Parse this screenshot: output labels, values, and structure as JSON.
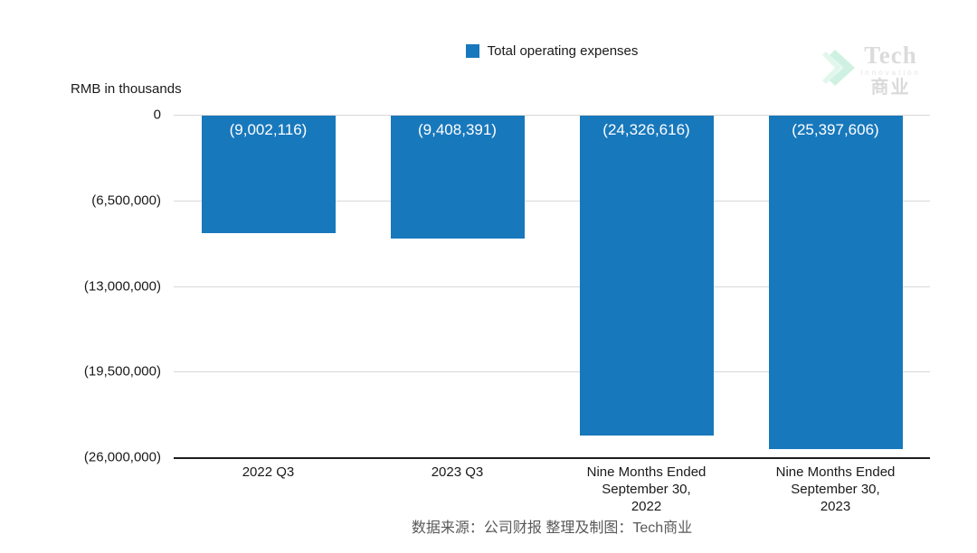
{
  "legend": {
    "label": "Total operating expenses",
    "swatch_color": "#1878bc"
  },
  "axis": {
    "unit_label": "RMB in thousands"
  },
  "logo": {
    "title": "Tech",
    "subtitle": "Innovation",
    "cjk": "商业",
    "chevron_icon": "double-chevron-right-icon",
    "chevron_colors": [
      "#a9e6c9",
      "#d2f3e2"
    ]
  },
  "footer": {
    "credit": "数据来源：公司财报 整理及制图：Tech商业"
  },
  "chart_data": {
    "type": "bar",
    "title": "Total operating expenses",
    "unit": "RMB in thousands",
    "categories": [
      "2022 Q3",
      "2023 Q3",
      "Nine Months Ended September 30, 2022",
      "Nine Months Ended September 30, 2023"
    ],
    "category_lines": [
      [
        "2022 Q3"
      ],
      [
        "2023 Q3"
      ],
      [
        "Nine Months Ended",
        "September 30,",
        "2022"
      ],
      [
        "Nine Months Ended",
        "September 30,",
        "2023"
      ]
    ],
    "series": [
      {
        "name": "Total operating expenses",
        "values": [
          -9002116,
          -9408391,
          -24326616,
          -25397606
        ],
        "data_labels": [
          "(9,002,116)",
          "(9,408,391)",
          "(24,326,616)",
          "(25,397,606)"
        ],
        "color": "#1878bc"
      }
    ],
    "ylim": [
      -26000000,
      0
    ],
    "y_ticks": [
      {
        "value": 0,
        "label": "0"
      },
      {
        "value": -6500000,
        "label": "(6,500,000)"
      },
      {
        "value": -13000000,
        "label": "(13,000,000)"
      },
      {
        "value": -19500000,
        "label": "(19,500,000)"
      },
      {
        "value": -26000000,
        "label": "(26,000,000)"
      }
    ],
    "grid": true,
    "legend_position": "top"
  }
}
